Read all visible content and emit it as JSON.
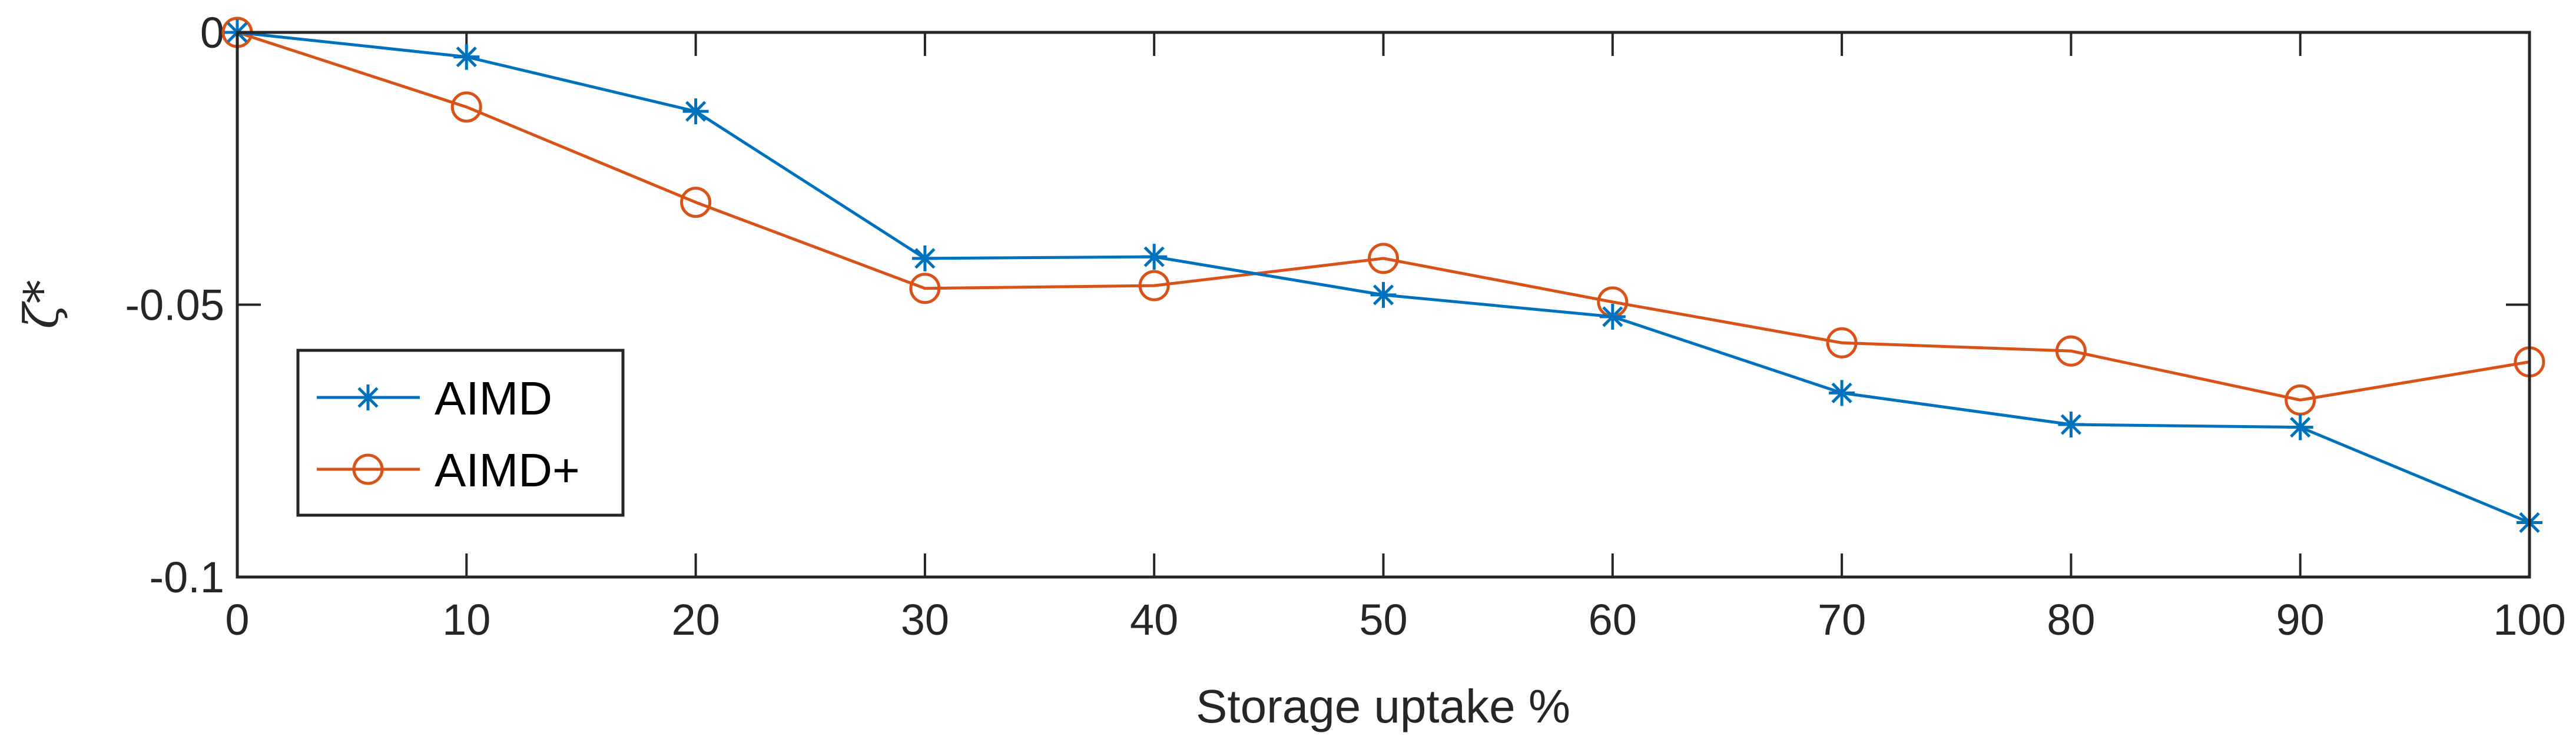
{
  "chart_data": {
    "type": "line",
    "title": "",
    "xlabel": "Storage uptake %",
    "ylabel": "ζ*",
    "x": [
      0,
      10,
      20,
      30,
      40,
      50,
      60,
      70,
      80,
      90,
      100
    ],
    "xlim": [
      0,
      100
    ],
    "ylim": [
      -0.1,
      0
    ],
    "x_ticks": [
      0,
      10,
      20,
      30,
      40,
      50,
      60,
      70,
      80,
      90,
      100
    ],
    "x_tick_labels": [
      "0",
      "10",
      "20",
      "30",
      "40",
      "50",
      "60",
      "70",
      "80",
      "90",
      "100"
    ],
    "y_ticks": [
      0,
      -0.05,
      -0.1
    ],
    "y_tick_labels": [
      "0",
      "-0.05",
      "-0.1"
    ],
    "grid": false,
    "legend_position": "bottom-left",
    "series": [
      {
        "name": "AIMD",
        "marker": "asterisk",
        "color": "#0072BD",
        "values": [
          0,
          -0.0045,
          -0.0145,
          -0.0415,
          -0.0412,
          -0.0482,
          -0.0522,
          -0.0662,
          -0.072,
          -0.0725,
          -0.09
        ]
      },
      {
        "name": "AIMD+",
        "marker": "circle",
        "color": "#D95319",
        "values": [
          0,
          -0.0137,
          -0.0312,
          -0.047,
          -0.0465,
          -0.0415,
          -0.0495,
          -0.057,
          -0.0585,
          -0.0675,
          -0.0605
        ]
      }
    ]
  }
}
